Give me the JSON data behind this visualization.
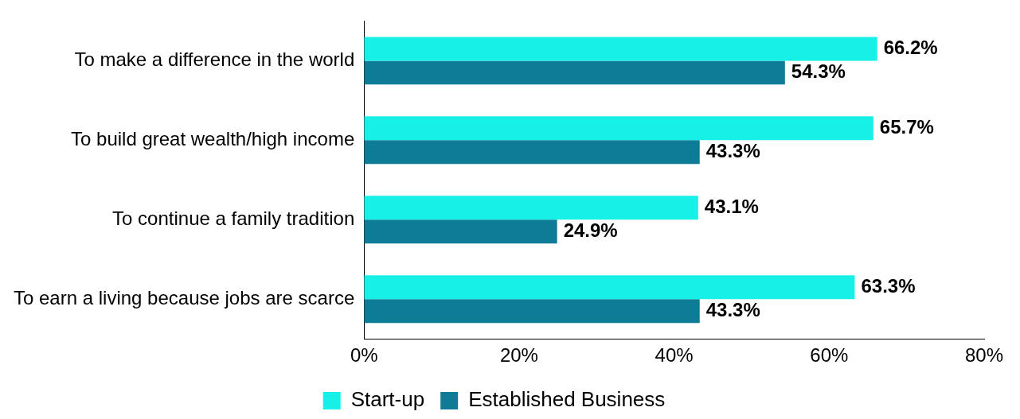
{
  "chart_data": {
    "type": "bar",
    "orientation": "horizontal",
    "categories": [
      "To make a difference in the world",
      "To build great wealth/high income",
      "To continue a family tradition",
      "To earn a living because jobs are scarce"
    ],
    "series": [
      {
        "name": "Start-up",
        "color": "#17f0e6",
        "values": [
          66.2,
          65.7,
          43.1,
          63.3
        ],
        "value_labels": [
          "66.2%",
          "65.7%",
          "43.1%",
          "63.3%"
        ]
      },
      {
        "name": "Established Business",
        "color": "#0e7c96",
        "values": [
          54.3,
          43.3,
          24.9,
          43.3
        ],
        "value_labels": [
          "54.3%",
          "43.3%",
          "24.9%",
          "43.3%"
        ]
      }
    ],
    "xlim": [
      0,
      80
    ],
    "xticks": [
      {
        "value": 0,
        "label": "0%"
      },
      {
        "value": 20,
        "label": "20%"
      },
      {
        "value": 40,
        "label": "40%"
      },
      {
        "value": 60,
        "label": "60%"
      },
      {
        "value": 80,
        "label": "80%"
      }
    ],
    "grid": false,
    "legend": "bottom"
  }
}
